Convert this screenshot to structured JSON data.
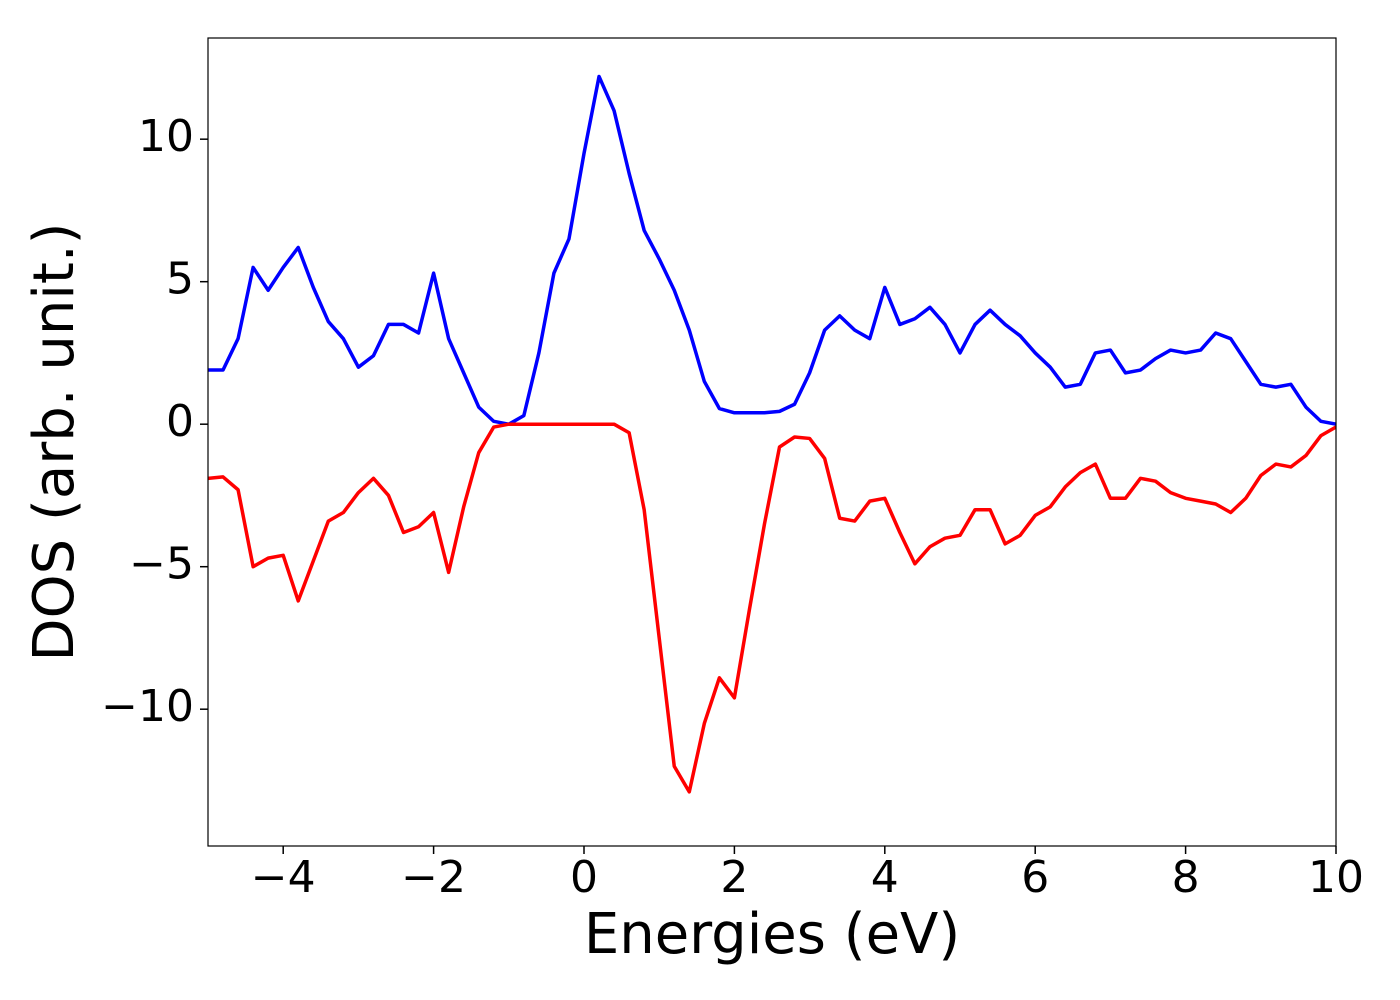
{
  "chart_data": {
    "type": "line",
    "xlabel": "Energies (eV)",
    "ylabel": "DOS (arb. unit.)",
    "x": [
      -5.0,
      -4.8,
      -4.6,
      -4.4,
      -4.2,
      -4.0,
      -3.8,
      -3.6,
      -3.4,
      -3.2,
      -3.0,
      -2.8,
      -2.6,
      -2.4,
      -2.2,
      -2.0,
      -1.8,
      -1.6,
      -1.4,
      -1.2,
      -1.0,
      -0.8,
      -0.6,
      -0.4,
      -0.2,
      0.0,
      0.2,
      0.4,
      0.6,
      0.8,
      1.0,
      1.2,
      1.4,
      1.6,
      1.8,
      2.0,
      2.2,
      2.4,
      2.6,
      2.8,
      3.0,
      3.2,
      3.4,
      3.6,
      3.8,
      4.0,
      4.2,
      4.4,
      4.6,
      4.8,
      5.0,
      5.2,
      5.4,
      5.6,
      5.8,
      6.0,
      6.2,
      6.4,
      6.6,
      6.8,
      7.0,
      7.2,
      7.4,
      7.6,
      7.8,
      8.0,
      8.2,
      8.4,
      8.6,
      8.8,
      9.0,
      9.2,
      9.4,
      9.6,
      9.8,
      10.0
    ],
    "series": [
      {
        "color": "#0000ff",
        "values": [
          1.9,
          1.9,
          3.0,
          5.5,
          4.7,
          5.5,
          6.2,
          4.8,
          3.6,
          3.0,
          2.0,
          2.4,
          3.5,
          3.5,
          3.2,
          5.3,
          3.0,
          1.8,
          0.6,
          0.1,
          0.0,
          0.3,
          2.5,
          5.3,
          6.5,
          9.5,
          12.2,
          11.0,
          8.8,
          6.8,
          5.8,
          4.7,
          3.3,
          1.5,
          0.55,
          0.4,
          0.4,
          0.4,
          0.45,
          0.7,
          1.8,
          3.3,
          3.8,
          3.3,
          3.0,
          4.8,
          3.5,
          3.7,
          4.1,
          3.5,
          2.5,
          3.5,
          4.0,
          3.5,
          3.1,
          2.5,
          2.0,
          1.3,
          1.4,
          2.5,
          2.6,
          1.8,
          1.9,
          2.3,
          2.6,
          2.5,
          2.6,
          3.2,
          3.0,
          2.2,
          1.4,
          1.3,
          1.4,
          0.6,
          0.1,
          0.0
        ]
      },
      {
        "color": "#ff0000",
        "values": [
          -1.9,
          -1.85,
          -2.3,
          -5.0,
          -4.7,
          -4.6,
          -6.2,
          -4.8,
          -3.4,
          -3.1,
          -2.4,
          -1.9,
          -2.5,
          -3.8,
          -3.6,
          -3.1,
          -5.2,
          -2.9,
          -1.0,
          -0.1,
          0.0,
          0.0,
          0.0,
          0.0,
          0.0,
          0.0,
          0.0,
          0.0,
          -0.3,
          -3.0,
          -7.5,
          -12.0,
          -12.9,
          -10.5,
          -8.9,
          -9.6,
          -6.5,
          -3.5,
          -0.8,
          -0.45,
          -0.5,
          -1.2,
          -3.3,
          -3.4,
          -2.7,
          -2.6,
          -3.8,
          -4.9,
          -4.3,
          -4.0,
          -3.9,
          -3.0,
          -3.0,
          -4.2,
          -3.9,
          -3.2,
          -2.9,
          -2.2,
          -1.7,
          -1.4,
          -2.6,
          -2.6,
          -1.9,
          -2.0,
          -2.4,
          -2.6,
          -2.7,
          -2.8,
          -3.1,
          -2.6,
          -1.8,
          -1.4,
          -1.5,
          -1.1,
          -0.4,
          -0.1
        ]
      }
    ],
    "xlim": [
      -5,
      10
    ],
    "xticks": [
      {
        "value": -4,
        "label": "−4"
      },
      {
        "value": -2,
        "label": "−2"
      },
      0,
      2,
      4,
      6,
      8,
      10
    ],
    "ylim": [
      -14.8,
      13.55
    ],
    "yticks": [
      {
        "value": -10,
        "label": "−10"
      },
      {
        "value": -5,
        "label": "−5"
      },
      0,
      5,
      10
    ],
    "grid": false
  }
}
